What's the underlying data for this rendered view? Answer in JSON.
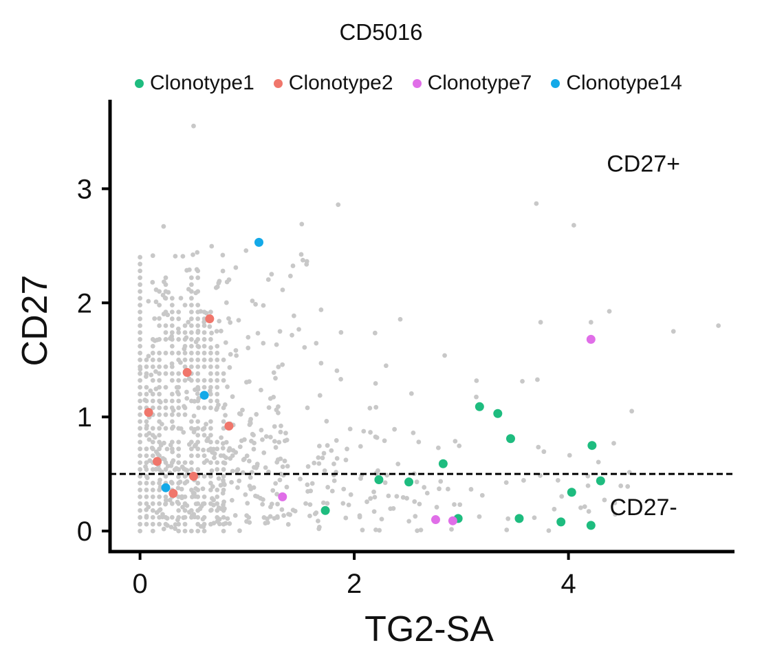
{
  "chart_data": {
    "type": "scatter",
    "title": "CD5016",
    "xlabel": "TG2-SA",
    "ylabel": "CD27",
    "xlim": [
      -0.28,
      5.55
    ],
    "ylim": [
      -0.18,
      3.75
    ],
    "xticks": [
      0,
      2,
      4
    ],
    "yticks": [
      0,
      1,
      2,
      3
    ],
    "threshold": {
      "y": 0.5,
      "style": "dashed"
    },
    "annotations": [
      {
        "text": "CD27+",
        "x": 4.7,
        "y": 3.15
      },
      {
        "text": "CD27-",
        "x": 4.7,
        "y": 0.14
      }
    ],
    "legend": {
      "position": "top"
    },
    "background_color": "#c8c8c8",
    "series": [
      {
        "name": "Clonotype1",
        "color": "#1ebc7f",
        "points": [
          [
            1.73,
            0.18
          ],
          [
            2.23,
            0.45
          ],
          [
            2.51,
            0.43
          ],
          [
            2.83,
            0.59
          ],
          [
            2.97,
            0.11
          ],
          [
            3.17,
            1.09
          ],
          [
            3.34,
            1.03
          ],
          [
            3.46,
            0.81
          ],
          [
            3.54,
            0.11
          ],
          [
            3.93,
            0.08
          ],
          [
            4.03,
            0.34
          ],
          [
            4.21,
            0.05
          ],
          [
            4.22,
            0.75
          ],
          [
            4.3,
            0.44
          ]
        ]
      },
      {
        "name": "Clonotype2",
        "color": "#f0766b",
        "points": [
          [
            0.08,
            1.04
          ],
          [
            0.16,
            0.61
          ],
          [
            0.31,
            0.33
          ],
          [
            0.44,
            1.39
          ],
          [
            0.5,
            0.48
          ],
          [
            0.65,
            1.86
          ],
          [
            0.83,
            0.92
          ]
        ]
      },
      {
        "name": "Clonotype7",
        "color": "#e06ee8",
        "points": [
          [
            1.33,
            0.3
          ],
          [
            2.76,
            0.1
          ],
          [
            2.92,
            0.09
          ],
          [
            4.21,
            1.68
          ]
        ]
      },
      {
        "name": "Clonotype14",
        "color": "#13a9e8",
        "points": [
          [
            0.24,
            0.38
          ],
          [
            0.6,
            1.19
          ],
          [
            1.11,
            2.53
          ]
        ]
      }
    ]
  }
}
